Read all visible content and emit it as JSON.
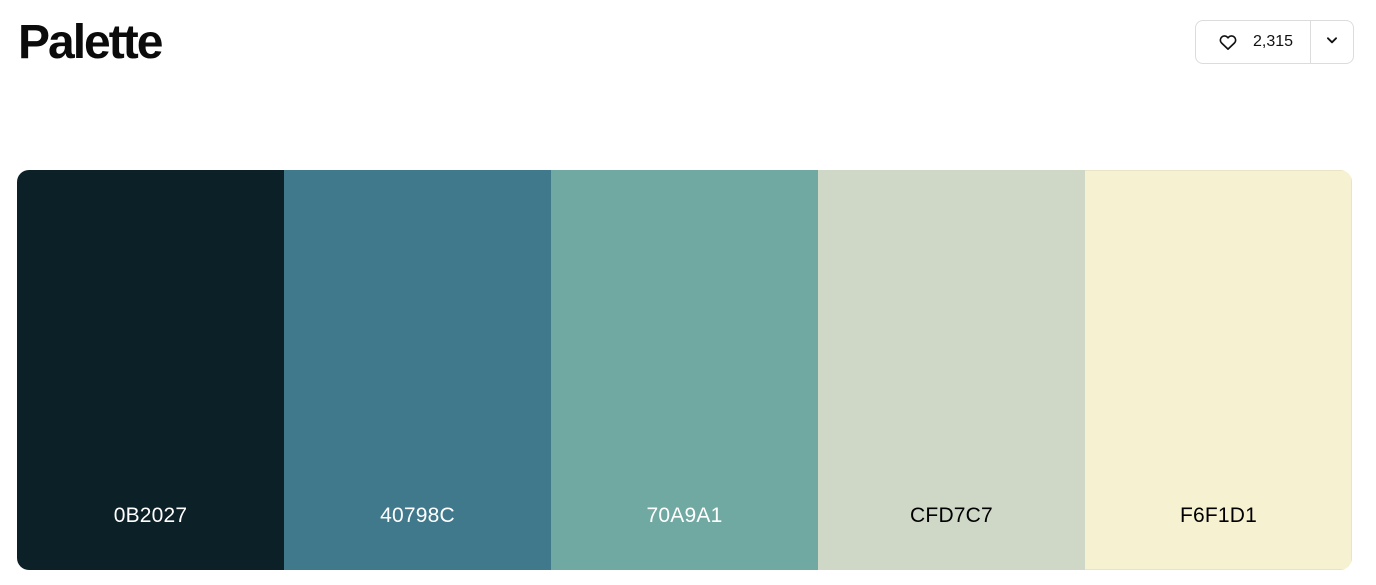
{
  "title": "Palette",
  "likes": {
    "count": "2,315",
    "icon": "heart-icon"
  },
  "more": {
    "icon": "chevron-down-icon"
  },
  "palette": [
    {
      "hex": "0B2027",
      "color": "#0B2027",
      "text_color": "#ffffff"
    },
    {
      "hex": "40798C",
      "color": "#40798C",
      "text_color": "#ffffff"
    },
    {
      "hex": "70A9A1",
      "color": "#70A9A1",
      "text_color": "#ffffff"
    },
    {
      "hex": "CFD7C7",
      "color": "#CFD7C7",
      "text_color": "#000000"
    },
    {
      "hex": "F6F1D1",
      "color": "#F6F1D1",
      "text_color": "#000000"
    }
  ]
}
